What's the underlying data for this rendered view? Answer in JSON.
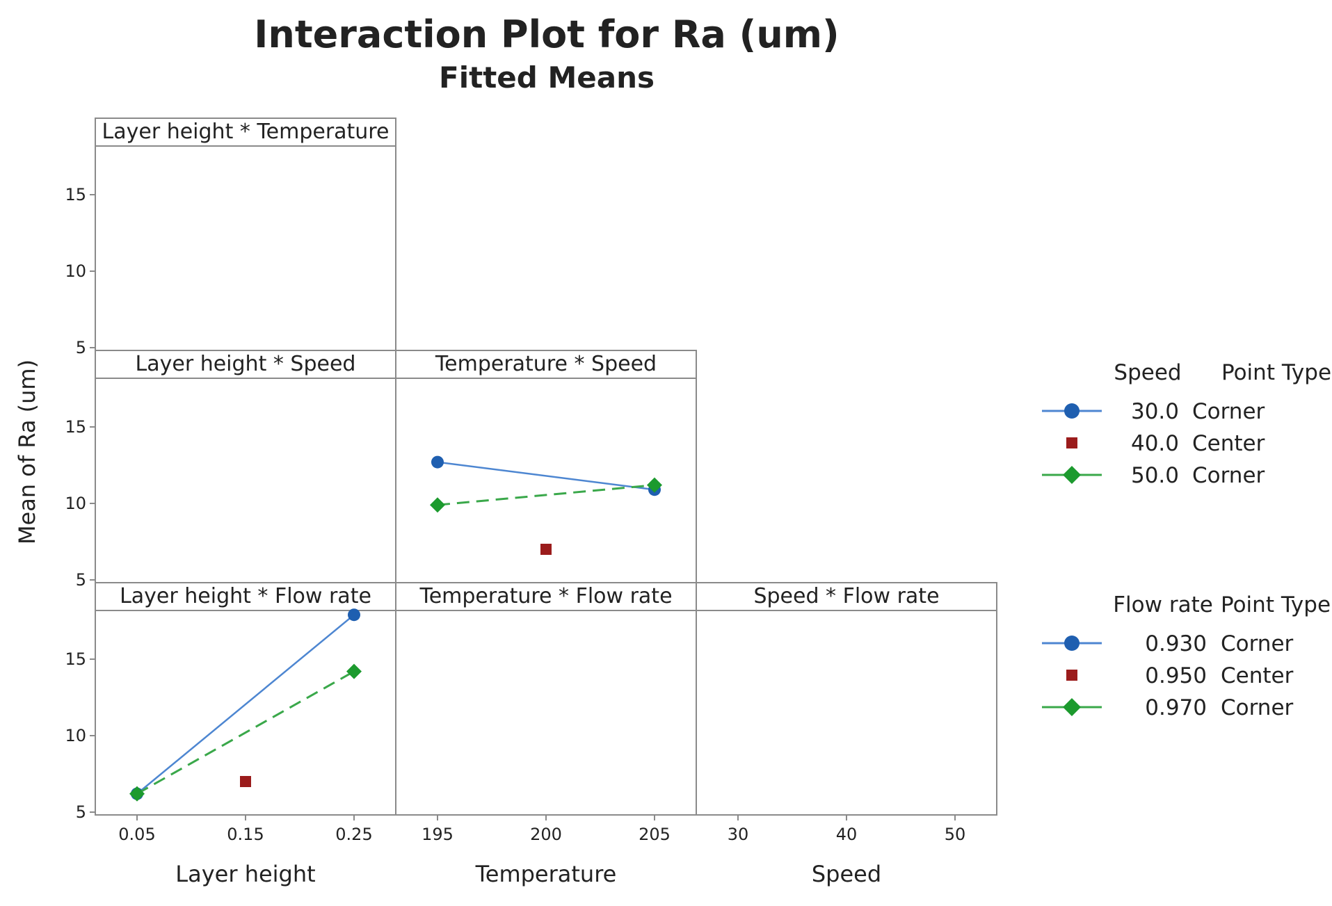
{
  "chart_data": {
    "type": "line",
    "title": "Interaction Plot for Ra (um)",
    "subtitle": "Fitted Means",
    "ylabel": "Mean of Ra (um)",
    "ylim": [
      5,
      18
    ],
    "yticks": [
      "5",
      "10",
      "15"
    ],
    "panels": [
      {
        "key": "lh_temp",
        "title": "Layer height * Temperature",
        "series": []
      },
      {
        "key": "lh_speed",
        "title": "Layer height * Speed",
        "series": []
      },
      {
        "key": "temp_speed",
        "title": "Temperature * Speed",
        "series": [
          {
            "name": "30.0 Corner",
            "values": [
              12.7,
              10.9
            ],
            "x": [
              195,
              205
            ]
          },
          {
            "name": "40.0 Center",
            "values": [
              7.0
            ],
            "x": [
              200
            ]
          },
          {
            "name": "50.0 Corner",
            "values": [
              9.9,
              11.2
            ],
            "x": [
              195,
              205
            ]
          }
        ]
      },
      {
        "key": "lh_flow",
        "title": "Layer height * Flow rate",
        "series": [
          {
            "name": "0.930 Corner",
            "values": [
              6.2,
              17.9
            ],
            "x": [
              0.05,
              0.25
            ]
          },
          {
            "name": "0.950 Center",
            "values": [
              7.0
            ],
            "x": [
              0.15
            ]
          },
          {
            "name": "0.970 Corner",
            "values": [
              6.2,
              14.2
            ],
            "x": [
              0.05,
              0.25
            ]
          }
        ]
      },
      {
        "key": "temp_flow",
        "title": "Temperature * Flow rate",
        "series": []
      },
      {
        "key": "speed_flow",
        "title": "Speed * Flow rate",
        "series": []
      }
    ],
    "x_axes": [
      {
        "label": "Layer height",
        "ticks": [
          "0.05",
          "0.15",
          "0.25"
        ],
        "values": [
          0.05,
          0.15,
          0.25
        ]
      },
      {
        "label": "Temperature",
        "ticks": [
          "195",
          "200",
          "205"
        ],
        "values": [
          195,
          200,
          205
        ]
      },
      {
        "label": "Speed",
        "ticks": [
          "30",
          "40",
          "50"
        ],
        "values": [
          30,
          40,
          50
        ]
      }
    ],
    "legends": [
      {
        "header_factor": "Speed",
        "header_type": "Point Type",
        "entries": [
          {
            "level": "30.0",
            "type": "Corner"
          },
          {
            "level": "40.0",
            "type": "Center"
          },
          {
            "level": "50.0",
            "type": "Corner"
          }
        ]
      },
      {
        "header_factor": "Flow rate",
        "header_type": "Point Type",
        "entries": [
          {
            "level": "0.930",
            "type": "Corner"
          },
          {
            "level": "0.950",
            "type": "Center"
          },
          {
            "level": "0.970",
            "type": "Corner"
          }
        ]
      }
    ],
    "colors": {
      "low": "#1f5fb0",
      "center": "#9b1c1c",
      "high": "#1c9a2e",
      "low_line": "#4d86d1",
      "high_line": "#3aa84a"
    }
  }
}
